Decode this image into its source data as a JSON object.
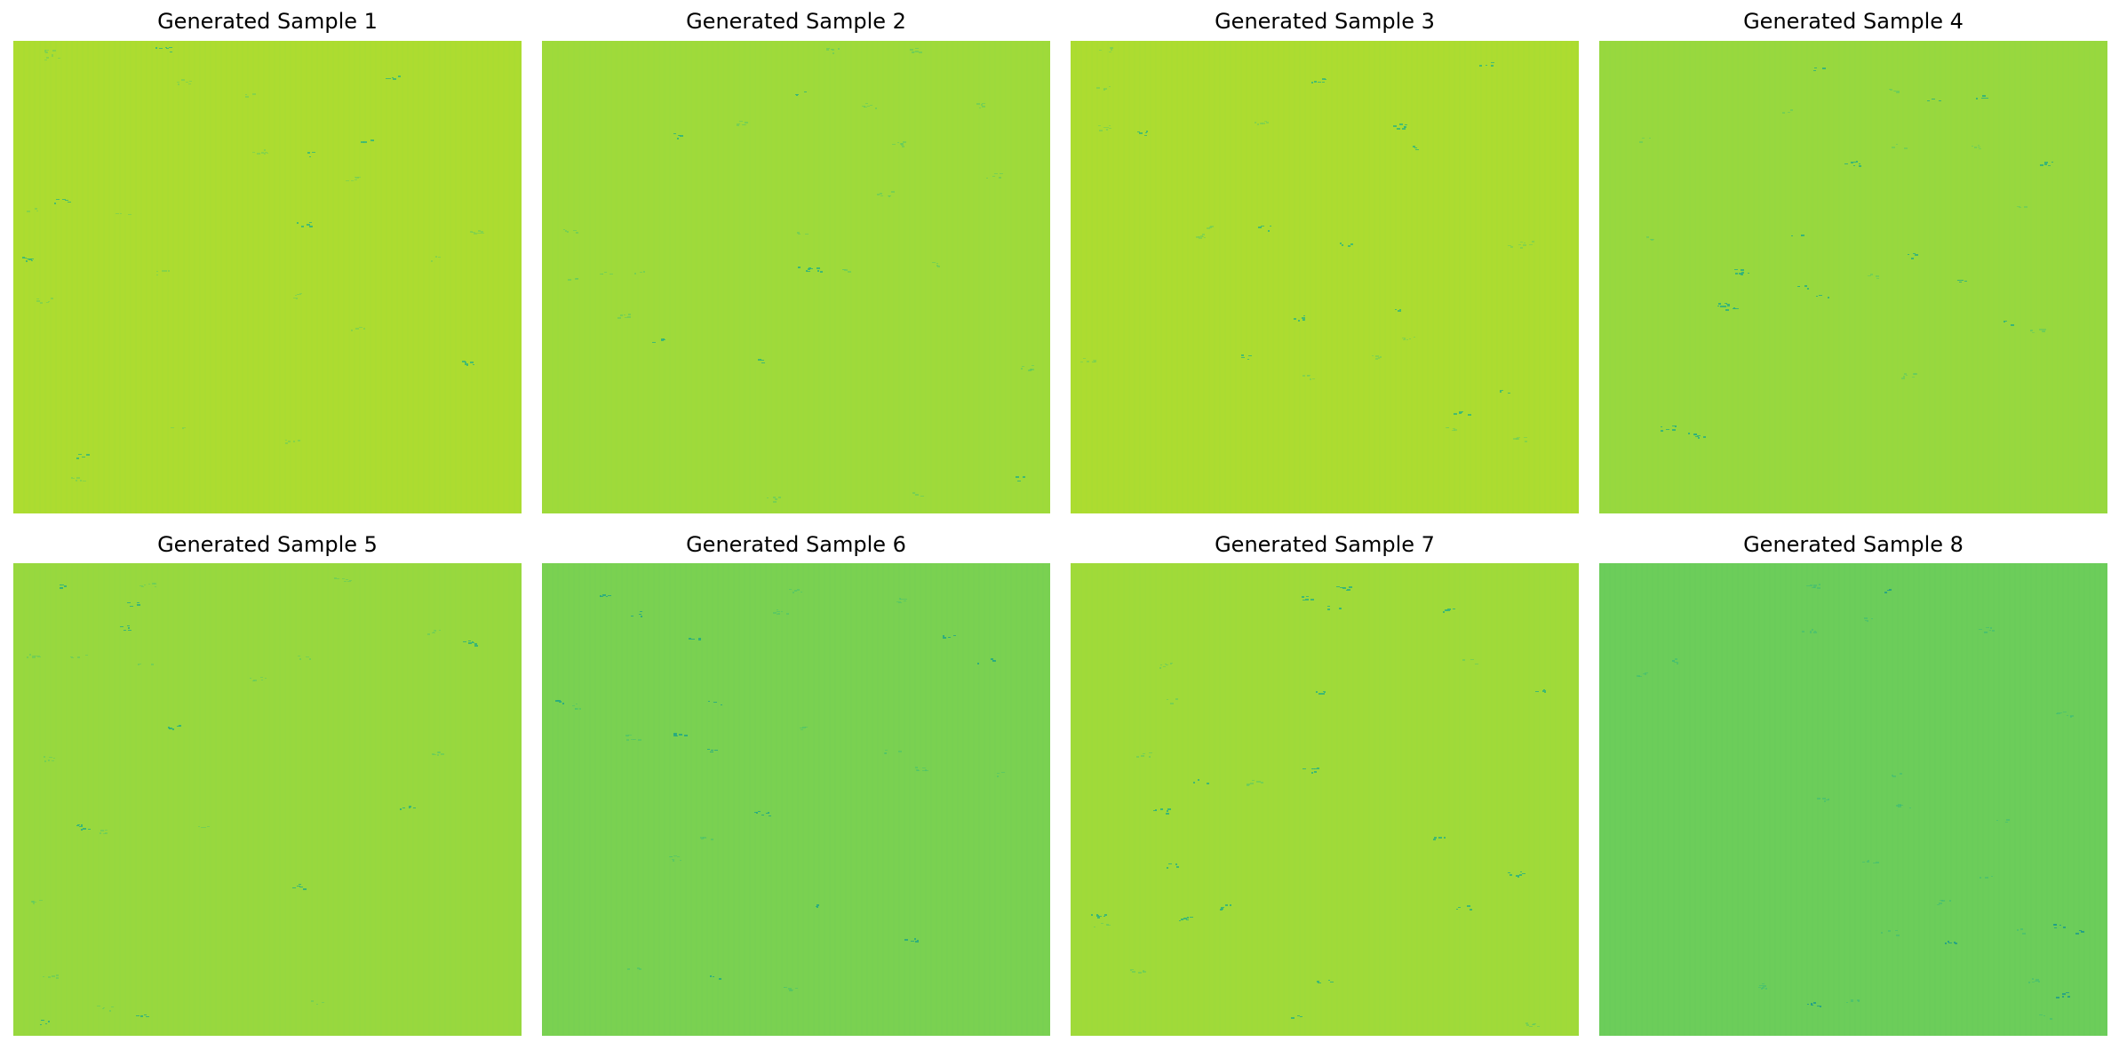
{
  "figure": {
    "panels": [
      {
        "title": "Generated Sample 1",
        "base_color": "#ADDC30",
        "mark_color": "#6CCD5A",
        "mark_color_strong": "#35B779"
      },
      {
        "title": "Generated Sample 2",
        "base_color": "#9FDA3A",
        "mark_color": "#5EC962",
        "mark_color_strong": "#2EB37C"
      },
      {
        "title": "Generated Sample 3",
        "base_color": "#ADDC30",
        "mark_color": "#6CCD5A",
        "mark_color_strong": "#35B779"
      },
      {
        "title": "Generated Sample 4",
        "base_color": "#98D83E",
        "mark_color": "#5EC962",
        "mark_color_strong": "#2AB07F"
      },
      {
        "title": "Generated Sample 5",
        "base_color": "#98D83E",
        "mark_color": "#5EC962",
        "mark_color_strong": "#2AB07F"
      },
      {
        "title": "Generated Sample 6",
        "base_color": "#7AD151",
        "mark_color": "#4AC16D",
        "mark_color_strong": "#22A884"
      },
      {
        "title": "Generated Sample 7",
        "base_color": "#A0DA39",
        "mark_color": "#5EC962",
        "mark_color_strong": "#2EB37C"
      },
      {
        "title": "Generated Sample 8",
        "base_color": "#6CCD5A",
        "mark_color": "#3DBC74",
        "mark_color_strong": "#1F9E89"
      }
    ]
  }
}
